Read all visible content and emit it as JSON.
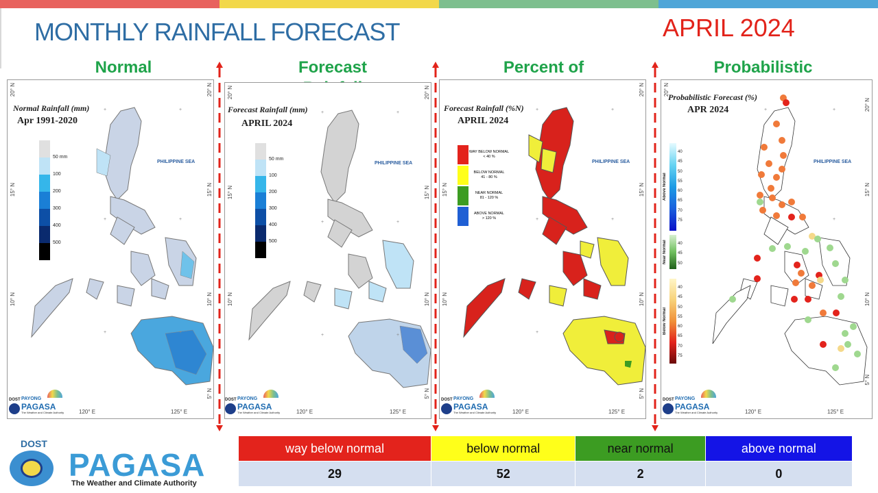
{
  "header": {
    "title": "MONTHLY RAINFALL FORECAST",
    "month": "APRIL 2024",
    "colors": [
      "#e8625e",
      "#f2d84a",
      "#7dbf8e",
      "#4fa6d8"
    ]
  },
  "panels": [
    {
      "title": "Normal",
      "map_title": "Normal Rainfall (mm)",
      "map_sub": "Apr 1991-2020"
    },
    {
      "title": "Forecast Rainfall",
      "map_title": "Forecast Rainfall (mm)",
      "map_sub": "APRIL 2024"
    },
    {
      "title": "Percent of",
      "map_title": "Forecast Rainfall (%N)",
      "map_sub": "APRIL 2024"
    },
    {
      "title": "Probabilistic",
      "map_title": "Probabilistic Forecast (%)",
      "map_sub": "APR 2024"
    }
  ],
  "map_common": {
    "sea_label": "PHILIPPINE SEA",
    "lat_labels": [
      "20° N",
      "15° N",
      "10° N",
      "5° N"
    ],
    "lon_labels": [
      "120° E",
      "125° E"
    ],
    "logo_dost": "DOST",
    "logo_payong": "PAYONG",
    "logo_pagasa": "PAGASA",
    "logo_tagline": "The Weather and Climate Authority"
  },
  "rain_legend": {
    "labels": [
      "50 mm",
      "100",
      "200",
      "300",
      "400",
      "500"
    ],
    "colors": [
      "#e0e0e0",
      "#bfe3f6",
      "#35b6ea",
      "#1a7fd6",
      "#0d4fa6",
      "#0a2a6e",
      "#000000"
    ]
  },
  "percent_legend": [
    {
      "label": "WAY BELOW NORMAL",
      "range": "< 40 %",
      "color": "#e3231c"
    },
    {
      "label": "BELOW NORMAL",
      "range": "41 - 80 %",
      "color": "#ffff1a"
    },
    {
      "label": "NEAR NORMAL",
      "range": "81 - 120 %",
      "color": "#3c9c22"
    },
    {
      "label": "ABOVE NORMAL",
      "range": "> 120 %",
      "color": "#1f5fd4"
    }
  ],
  "prob_legend": {
    "above": {
      "name": "Above Normal",
      "values": [
        "40",
        "45",
        "50",
        "55",
        "60",
        "65",
        "70",
        "75"
      ]
    },
    "near": {
      "name": "Near Normal",
      "values": [
        "40",
        "45",
        "50"
      ]
    },
    "below": {
      "name": "Below Normal",
      "values": [
        "40",
        "45",
        "50",
        "55",
        "60",
        "65",
        "70",
        "75"
      ]
    }
  },
  "summary": {
    "categories": [
      {
        "label": "way below normal",
        "value": "29",
        "color": "#e3231c",
        "text_color": "#ffffff"
      },
      {
        "label": "below normal",
        "value": "52",
        "color": "#ffff1a",
        "text_color": "#111111"
      },
      {
        "label": "near normal",
        "value": "2",
        "color": "#3c9c22",
        "text_color": "#111111"
      },
      {
        "label": "above normal",
        "value": "0",
        "color": "#1414e6",
        "text_color": "#ffffff"
      }
    ]
  },
  "footer_logo": {
    "dost": "DOST",
    "name": "PAGASA",
    "tagline": "The Weather and Climate Authority"
  }
}
